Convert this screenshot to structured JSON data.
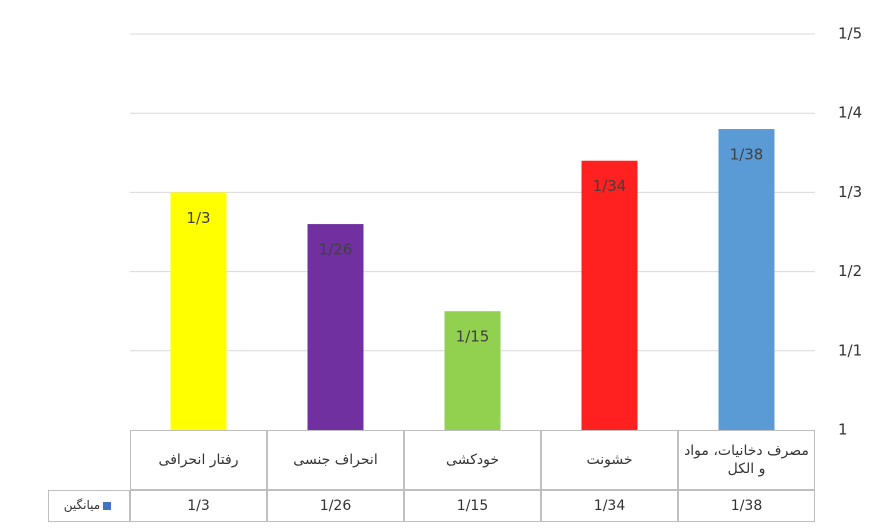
{
  "chart_data": {
    "type": "bar",
    "categories": [
      "رفتار انحرافی",
      "انحراف جنسی",
      "خودکشی",
      "خشونت",
      "مصرف دخانیات، مواد و الکل"
    ],
    "series": [
      {
        "name": "میانگین",
        "color": "#4472c4",
        "colors": [
          "#ffff00",
          "#7030a0",
          "#92d050",
          "#ff2020",
          "#5b9bd5"
        ],
        "values": [
          1.3,
          1.26,
          1.15,
          1.34,
          1.38
        ],
        "value_labels": [
          "1/3",
          "1/26",
          "1/15",
          "1/34",
          "1/38"
        ]
      }
    ],
    "ylim": [
      1,
      1.5
    ],
    "yticks": [
      1,
      {
        "value": 1.1,
        "label": "1/1"
      },
      {
        "value": 1.2,
        "label": "1/2"
      },
      {
        "value": 1.3,
        "label": "1/3"
      },
      {
        "value": 1.4,
        "label": "1/4"
      },
      {
        "value": 1.5,
        "label": "1/5"
      }
    ],
    "grid": true,
    "legend": "bottom-left"
  }
}
